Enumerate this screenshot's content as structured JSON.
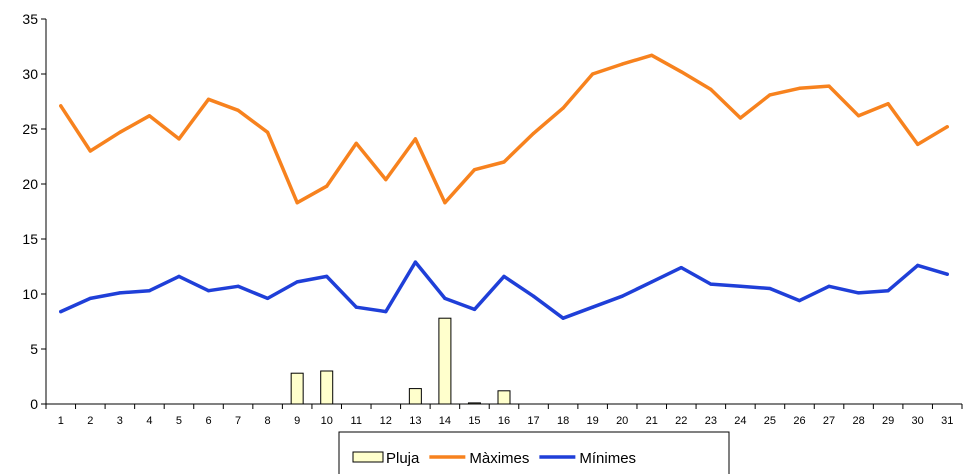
{
  "header_fragment": "",
  "chart_data": {
    "type": "bar",
    "title": "",
    "xlabel": "",
    "ylabel": "",
    "ylim": [
      0,
      35
    ],
    "yticks": [
      0,
      5,
      10,
      15,
      20,
      25,
      30,
      35
    ],
    "grid": false,
    "legend_placement": "bottom",
    "categories": [
      "1",
      "2",
      "3",
      "4",
      "5",
      "6",
      "7",
      "8",
      "9",
      "10",
      "11",
      "12",
      "13",
      "14",
      "15",
      "16",
      "17",
      "18",
      "19",
      "20",
      "21",
      "22",
      "23",
      "24",
      "25",
      "26",
      "27",
      "28",
      "29",
      "30",
      "31"
    ],
    "series": [
      {
        "name": "Pluja",
        "type": "bar",
        "color": "#ffffcc",
        "values": [
          0,
          0,
          0,
          0,
          0,
          0,
          0,
          0,
          2.8,
          3.0,
          0,
          0,
          1.4,
          7.8,
          0.1,
          1.2,
          0,
          0,
          0,
          0,
          0,
          0,
          0,
          0,
          0,
          0,
          0,
          0,
          0,
          0,
          0
        ]
      },
      {
        "name": "Màximes",
        "type": "line",
        "color": "#f7821e",
        "values": [
          27.1,
          23.0,
          24.7,
          26.2,
          24.1,
          27.7,
          26.7,
          24.7,
          18.3,
          19.8,
          23.7,
          20.4,
          24.1,
          18.3,
          21.3,
          22.0,
          24.6,
          26.9,
          30.0,
          30.9,
          31.7,
          30.2,
          28.6,
          26.0,
          28.1,
          28.7,
          28.9,
          26.2,
          27.3,
          23.6,
          25.2
        ]
      },
      {
        "name": "Mínimes",
        "type": "line",
        "color": "#1f3fd8",
        "values": [
          8.4,
          9.6,
          10.1,
          10.3,
          11.6,
          10.3,
          10.7,
          9.6,
          11.1,
          11.6,
          8.8,
          8.4,
          12.9,
          9.6,
          8.6,
          11.6,
          9.8,
          7.8,
          8.8,
          9.8,
          11.1,
          12.4,
          10.9,
          10.7,
          10.5,
          9.4,
          10.7,
          10.1,
          10.3,
          12.6,
          11.8
        ]
      }
    ]
  }
}
